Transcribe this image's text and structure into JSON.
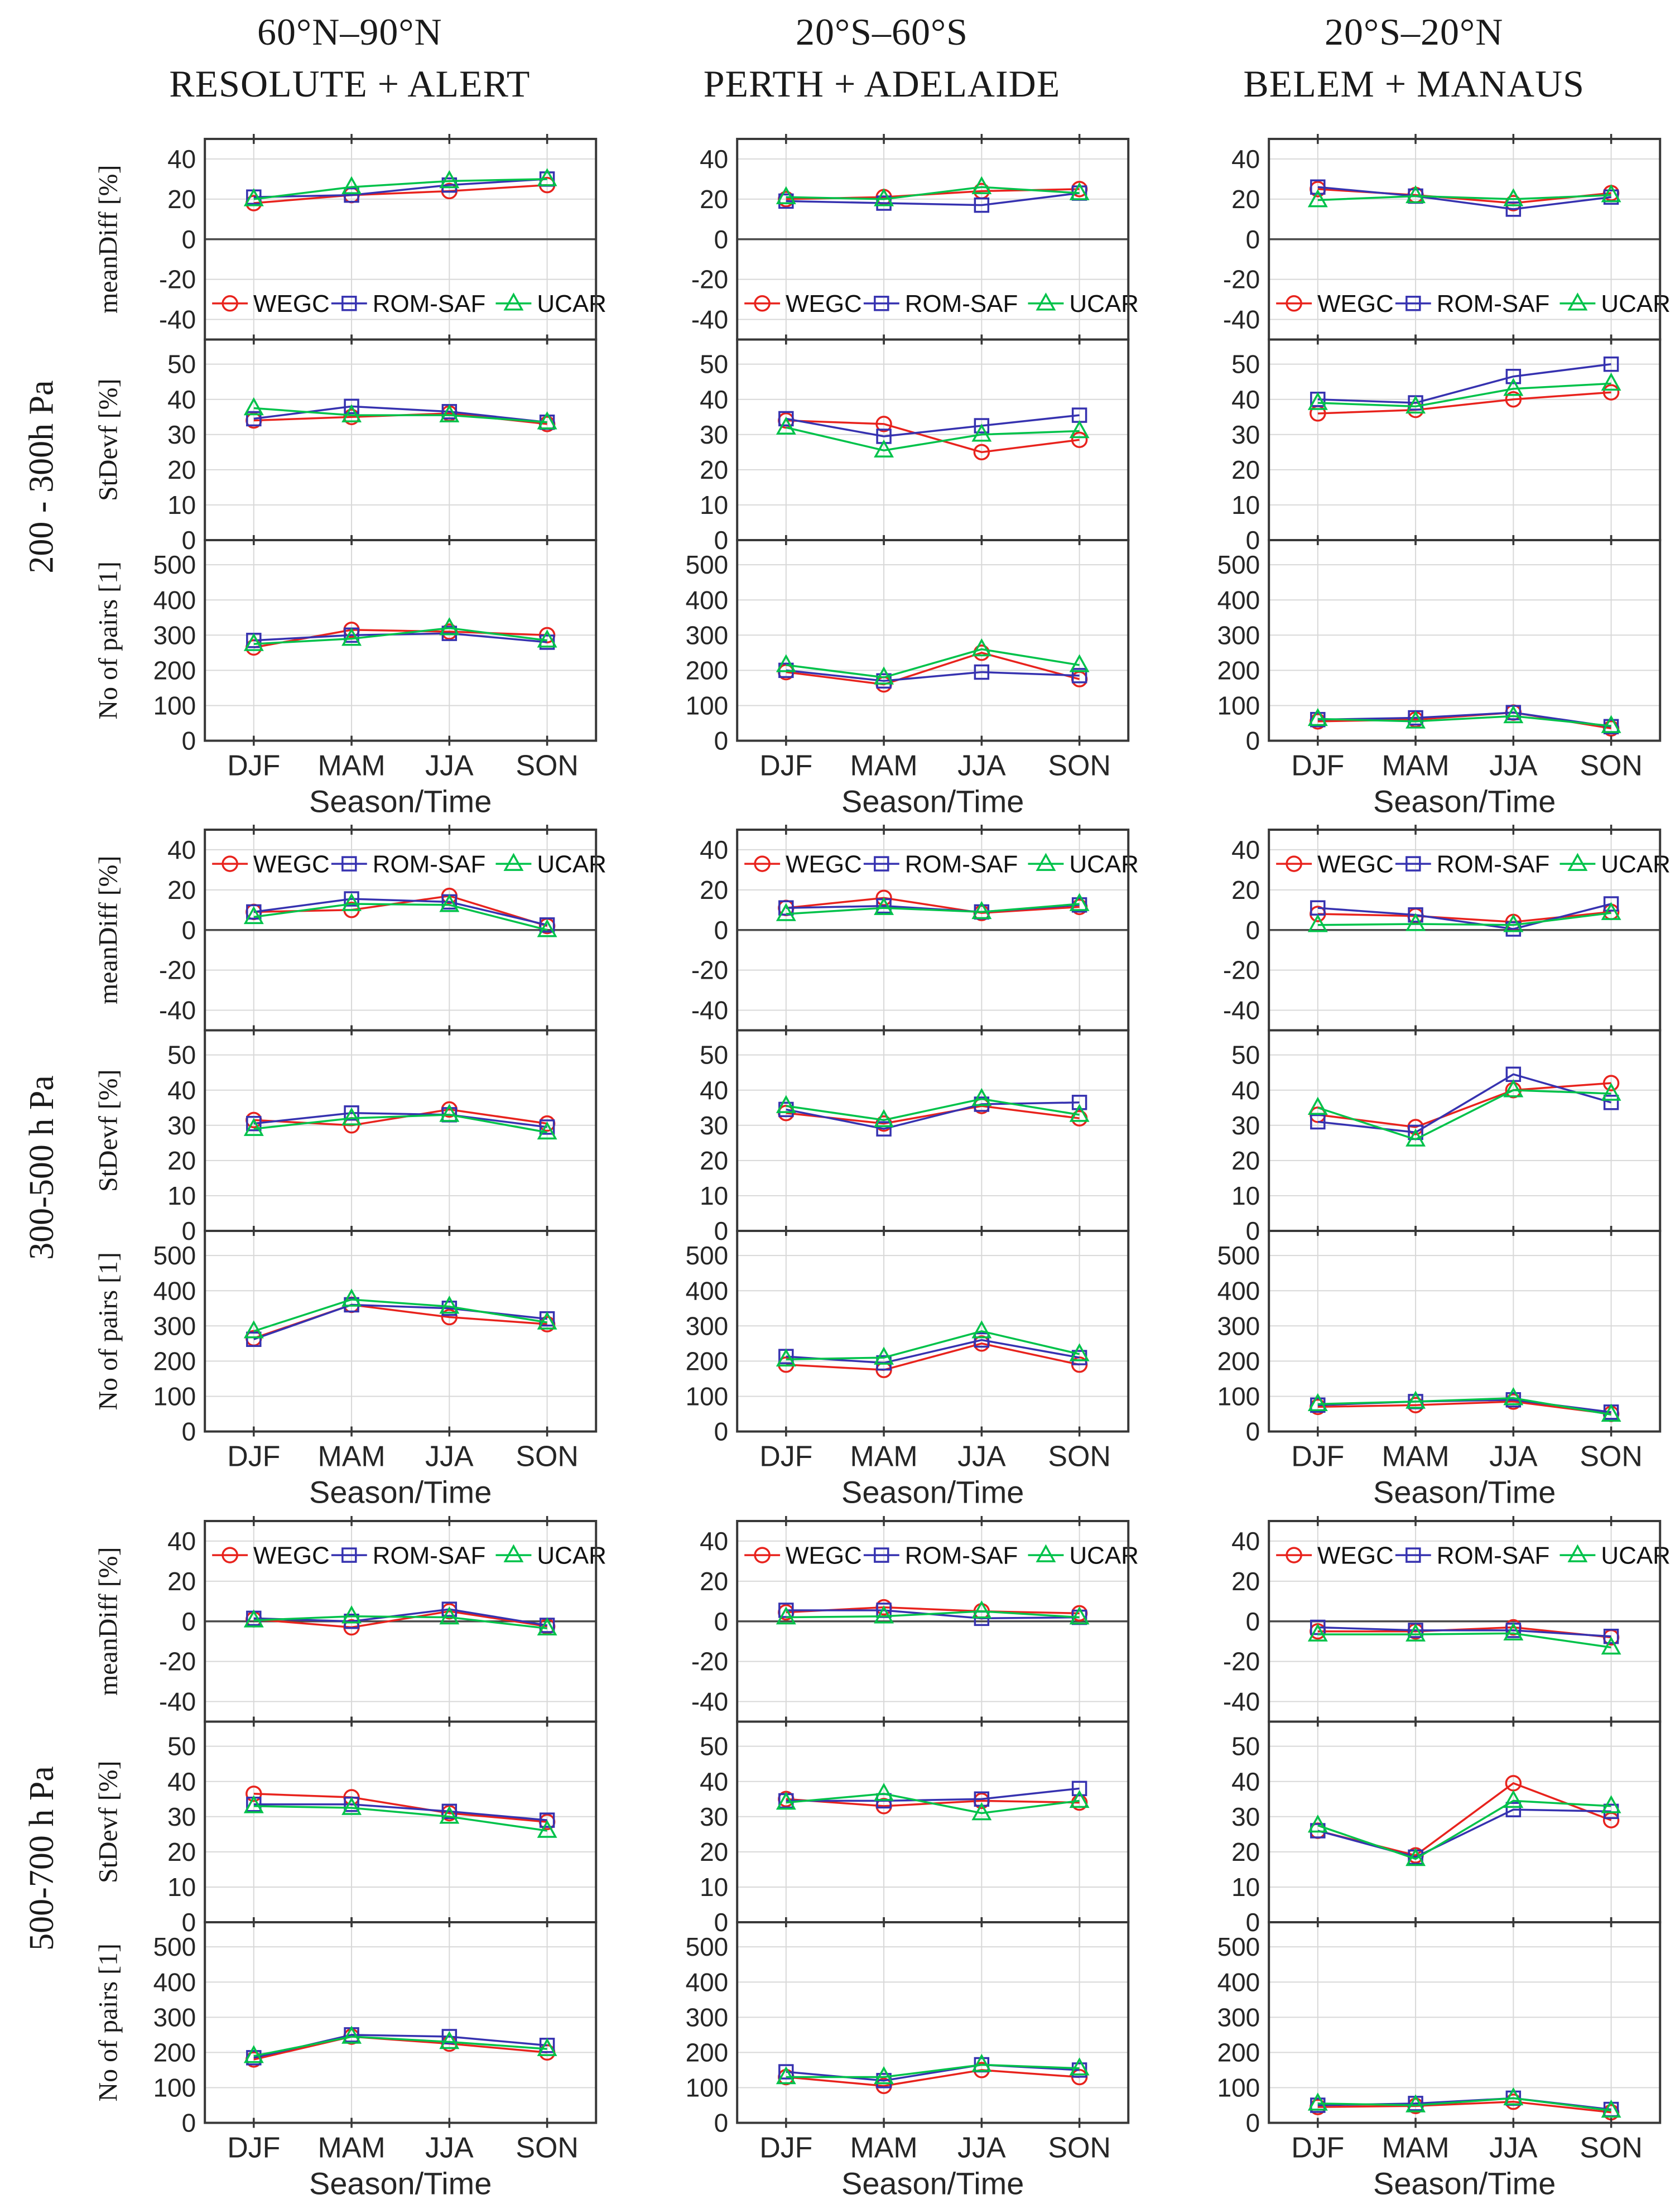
{
  "header": {
    "cols": [
      {
        "line1": "60°N–90°N",
        "line2": "RESOLUTE + ALERT"
      },
      {
        "line1": "20°S–60°S",
        "line2": "PERTH + ADELAIDE"
      },
      {
        "line1": "20°S–20°N",
        "line2": "BELEM + MANAUS"
      }
    ]
  },
  "rows": [
    {
      "label": "200 - 300h Pa"
    },
    {
      "label": "300-500 h Pa"
    },
    {
      "label": "500-700 h Pa"
    }
  ],
  "chart_data": {
    "type": "line",
    "x_categories": [
      "DJF",
      "MAM",
      "JJA",
      "SON"
    ],
    "xlabel": "Season/Time",
    "grid_color": "#d8d8d8",
    "axis_color": "#383838",
    "zero_line_color": "#4a4a4a",
    "series": [
      {
        "name": "WEGC",
        "color": "#e8231d",
        "marker": "circle"
      },
      {
        "name": "ROM-SAF",
        "color": "#3632b0",
        "marker": "square"
      },
      {
        "name": "UCAR",
        "color": "#00c24a",
        "marker": "triangle"
      }
    ],
    "panels": [
      {
        "key": "meanDiff",
        "ylabel": "meanDiff [%]",
        "ylim": [
          -50,
          50
        ],
        "yticks": [
          40,
          20,
          0,
          -20,
          -40
        ],
        "zero_line": true
      },
      {
        "key": "StDevf",
        "ylabel": "StDevf [%]",
        "ylim": [
          0,
          57
        ],
        "yticks": [
          50,
          40,
          30,
          20,
          10,
          0
        ],
        "zero_line": false
      },
      {
        "key": "pairs",
        "ylabel": "No of pairs  [1]",
        "ylim": [
          0,
          570
        ],
        "yticks": [
          500,
          400,
          300,
          200,
          100,
          0
        ],
        "zero_line": false
      }
    ],
    "groups": [
      {
        "id": "r0c0",
        "row": 0,
        "col": 0,
        "legend_position": "bottom",
        "meanDiff": {
          "WEGC": [
            18,
            22,
            24,
            27
          ],
          "ROM-SAF": [
            21,
            22,
            27,
            30
          ],
          "UCAR": [
            20,
            26,
            29,
            30
          ]
        },
        "StDevf": {
          "WEGC": [
            34,
            35,
            36,
            33
          ],
          "ROM-SAF": [
            34.5,
            38,
            36.5,
            33.5
          ],
          "UCAR": [
            37.5,
            35.5,
            35.5,
            33.5
          ]
        },
        "pairs": {
          "WEGC": [
            265,
            315,
            310,
            300
          ],
          "ROM-SAF": [
            285,
            300,
            305,
            280
          ],
          "UCAR": [
            275,
            290,
            320,
            285
          ]
        }
      },
      {
        "id": "r0c1",
        "row": 0,
        "col": 1,
        "legend_position": "bottom",
        "meanDiff": {
          "WEGC": [
            20,
            21,
            24,
            25
          ],
          "ROM-SAF": [
            19,
            18,
            17,
            23
          ],
          "UCAR": [
            21,
            20,
            26,
            23
          ]
        },
        "StDevf": {
          "WEGC": [
            34,
            33,
            25,
            28.5
          ],
          "ROM-SAF": [
            34.5,
            29.5,
            32.5,
            35.5
          ],
          "UCAR": [
            32,
            25.5,
            30,
            31
          ]
        },
        "pairs": {
          "WEGC": [
            195,
            160,
            250,
            175
          ],
          "ROM-SAF": [
            200,
            170,
            195,
            185
          ],
          "UCAR": [
            215,
            180,
            260,
            215
          ]
        }
      },
      {
        "id": "r0c2",
        "row": 0,
        "col": 2,
        "legend_position": "bottom",
        "meanDiff": {
          "WEGC": [
            25,
            22,
            18,
            23
          ],
          "ROM-SAF": [
            26,
            21.5,
            15,
            21
          ],
          "UCAR": [
            19.5,
            21.5,
            20,
            22
          ]
        },
        "StDevf": {
          "WEGC": [
            36,
            37,
            40,
            42
          ],
          "ROM-SAF": [
            40,
            39,
            46.5,
            50
          ],
          "UCAR": [
            39,
            38,
            43,
            44.5
          ]
        },
        "pairs": {
          "WEGC": [
            55,
            60,
            80,
            35
          ],
          "ROM-SAF": [
            60,
            65,
            80,
            40
          ],
          "UCAR": [
            62,
            55,
            70,
            42
          ]
        }
      },
      {
        "id": "r1c0",
        "row": 1,
        "col": 0,
        "legend_position": "top",
        "meanDiff": {
          "WEGC": [
            9,
            10,
            17,
            2
          ],
          "ROM-SAF": [
            9,
            15.5,
            14,
            2.5
          ],
          "UCAR": [
            6.5,
            13,
            12.5,
            0
          ]
        },
        "StDevf": {
          "WEGC": [
            31.5,
            30,
            34.5,
            30.5
          ],
          "ROM-SAF": [
            30.5,
            33.5,
            33,
            29.5
          ],
          "UCAR": [
            29,
            32,
            33,
            28
          ]
        },
        "pairs": {
          "WEGC": [
            265,
            360,
            325,
            305
          ],
          "ROM-SAF": [
            262,
            360,
            350,
            320
          ],
          "UCAR": [
            285,
            375,
            355,
            310
          ]
        }
      },
      {
        "id": "r1c1",
        "row": 1,
        "col": 1,
        "legend_position": "top",
        "meanDiff": {
          "WEGC": [
            11,
            16,
            8.5,
            11.5
          ],
          "ROM-SAF": [
            11,
            12,
            9,
            12.5
          ],
          "UCAR": [
            8,
            11,
            9,
            13
          ]
        },
        "StDevf": {
          "WEGC": [
            33.5,
            30.5,
            35.5,
            32
          ],
          "ROM-SAF": [
            34.5,
            29,
            36,
            36.5
          ],
          "UCAR": [
            35.5,
            31.5,
            37.5,
            33
          ]
        },
        "pairs": {
          "WEGC": [
            190,
            175,
            250,
            190
          ],
          "ROM-SAF": [
            213,
            195,
            260,
            210
          ],
          "UCAR": [
            205,
            210,
            285,
            220
          ]
        }
      },
      {
        "id": "r1c2",
        "row": 1,
        "col": 2,
        "legend_position": "top",
        "meanDiff": {
          "WEGC": [
            8,
            7,
            4,
            9
          ],
          "ROM-SAF": [
            11,
            7.5,
            0.5,
            13
          ],
          "UCAR": [
            2.5,
            3,
            2.5,
            8.5
          ]
        },
        "StDevf": {
          "WEGC": [
            33,
            29.5,
            40,
            42
          ],
          "ROM-SAF": [
            31,
            28,
            44.5,
            36.5
          ],
          "UCAR": [
            35,
            26,
            40,
            39
          ]
        },
        "pairs": {
          "WEGC": [
            70,
            75,
            85,
            50
          ],
          "ROM-SAF": [
            75,
            85,
            90,
            55
          ],
          "UCAR": [
            78,
            85,
            95,
            48
          ]
        }
      },
      {
        "id": "r2c0",
        "row": 2,
        "col": 0,
        "legend_position": "top",
        "meanDiff": {
          "WEGC": [
            1,
            -3,
            5,
            -2.5
          ],
          "ROM-SAF": [
            1.5,
            0,
            6,
            -2
          ],
          "UCAR": [
            0.5,
            2.5,
            2,
            -3.5
          ]
        },
        "StDevf": {
          "WEGC": [
            36.5,
            35.5,
            31,
            28.5
          ],
          "ROM-SAF": [
            33.5,
            33.5,
            31.5,
            29
          ],
          "UCAR": [
            33,
            32.5,
            30,
            26
          ]
        },
        "pairs": {
          "WEGC": [
            180,
            245,
            225,
            200
          ],
          "ROM-SAF": [
            185,
            250,
            245,
            220
          ],
          "UCAR": [
            190,
            245,
            230,
            210
          ]
        }
      },
      {
        "id": "r2c1",
        "row": 2,
        "col": 1,
        "legend_position": "top",
        "meanDiff": {
          "WEGC": [
            4.5,
            7,
            5,
            4
          ],
          "ROM-SAF": [
            5.5,
            5.5,
            1.5,
            2
          ],
          "UCAR": [
            2,
            2.5,
            5,
            2
          ]
        },
        "StDevf": {
          "WEGC": [
            35,
            33,
            34.5,
            34
          ],
          "ROM-SAF": [
            34.5,
            34.5,
            35,
            38
          ],
          "UCAR": [
            34,
            36.5,
            31,
            34.5
          ]
        },
        "pairs": {
          "WEGC": [
            130,
            105,
            150,
            130
          ],
          "ROM-SAF": [
            145,
            120,
            165,
            150
          ],
          "UCAR": [
            130,
            130,
            165,
            155
          ]
        }
      },
      {
        "id": "r2c2",
        "row": 2,
        "col": 2,
        "legend_position": "top",
        "meanDiff": {
          "WEGC": [
            -5,
            -5,
            -3,
            -8
          ],
          "ROM-SAF": [
            -3,
            -4.5,
            -4.5,
            -7.5
          ],
          "UCAR": [
            -6.5,
            -6.5,
            -6,
            -13
          ]
        },
        "StDevf": {
          "WEGC": [
            26,
            19,
            39.5,
            29
          ],
          "ROM-SAF": [
            26,
            18.5,
            32,
            31.5
          ],
          "UCAR": [
            27.5,
            18,
            34.5,
            33
          ]
        },
        "pairs": {
          "WEGC": [
            45,
            48,
            60,
            30
          ],
          "ROM-SAF": [
            50,
            55,
            70,
            38
          ],
          "UCAR": [
            55,
            50,
            70,
            35
          ]
        }
      }
    ]
  }
}
